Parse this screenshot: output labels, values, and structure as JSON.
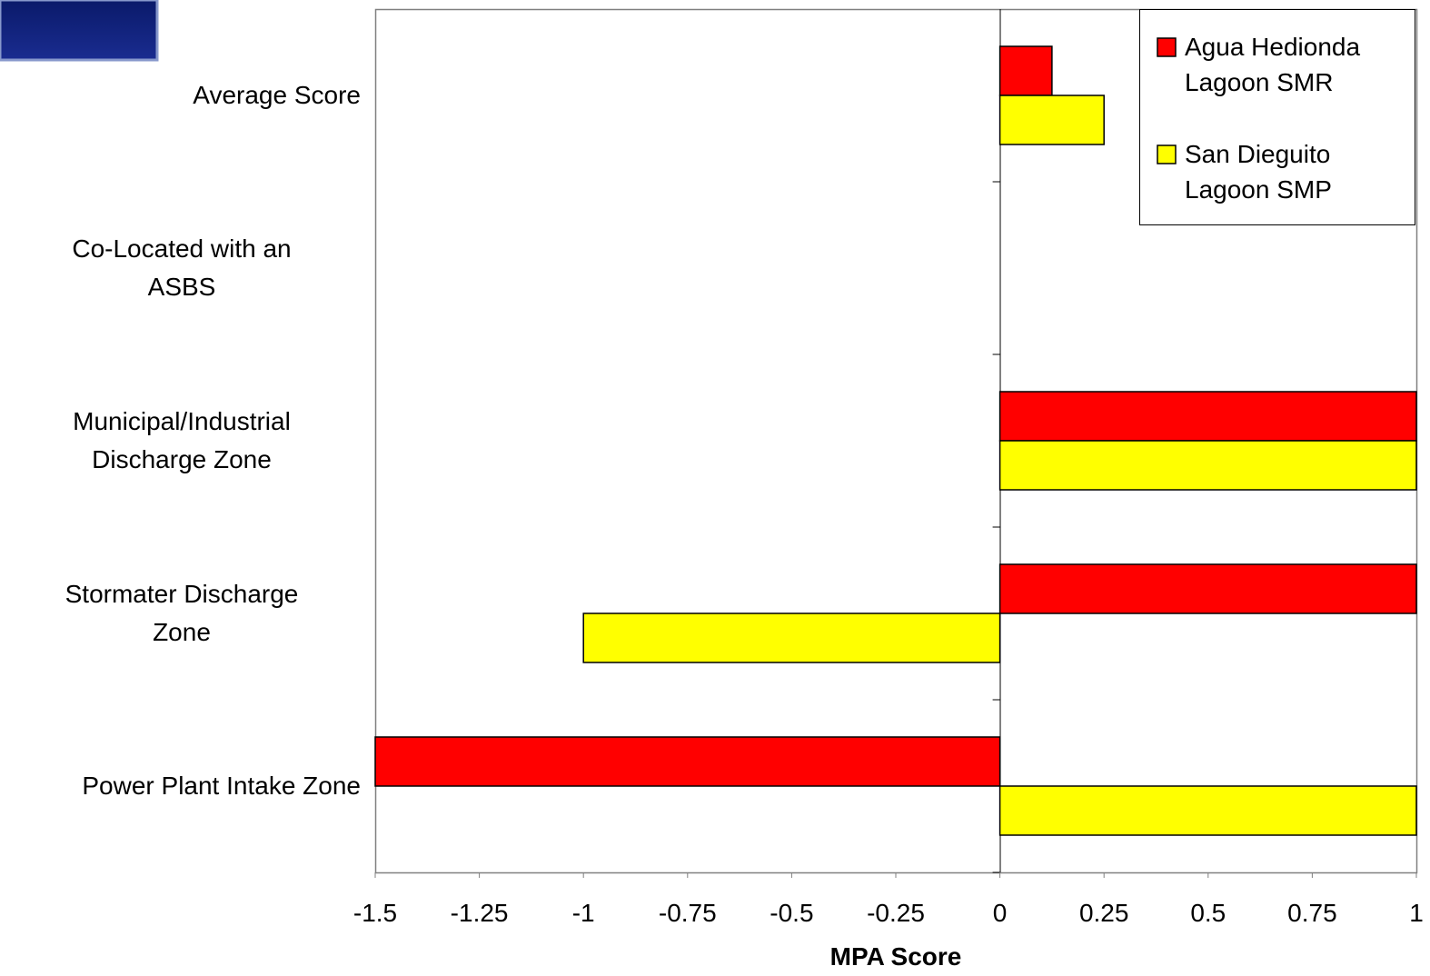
{
  "chart_data": {
    "type": "hbar",
    "x_label": "MPA Score",
    "categories": [
      "Average Score",
      "Co-Located with an\nASBS",
      "Municipal/Industrial\nDischarge Zone",
      "Stormater Discharge\nZone",
      "Power Plant Intake Zone"
    ],
    "series": [
      {
        "name": "Agua Hedionda Lagoon SMR",
        "color": "#ff0000",
        "values": [
          0.125,
          0,
          1,
          1,
          -1.5
        ]
      },
      {
        "name": "San Dieguito Lagoon SMP",
        "color": "#ffff00",
        "values": [
          0.25,
          0,
          1,
          -1,
          1
        ]
      }
    ],
    "xlim": [
      -1.5,
      1
    ],
    "xticks": [
      -1.5,
      -1.25,
      -1,
      -0.75,
      -0.5,
      -0.25,
      0,
      0.25,
      0.5,
      0.75,
      1
    ],
    "legend": "top-right",
    "grid": false
  }
}
